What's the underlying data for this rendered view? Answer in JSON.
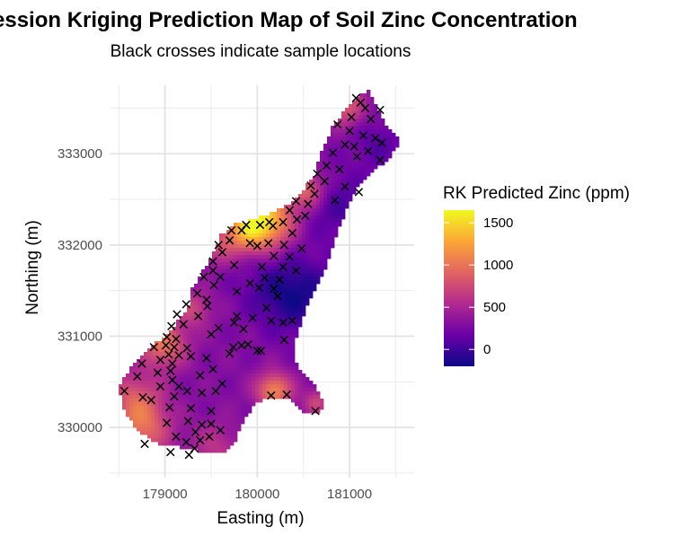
{
  "chart_data": {
    "type": "heatmap",
    "title": "Regression Kriging Prediction Map of Soil Zinc Concentration",
    "subtitle": "Black crosses indicate sample locations",
    "xlabel": "Easting (m)",
    "ylabel": "Northing (m)",
    "xlim": [
      178400,
      181700
    ],
    "ylim": [
      329450,
      333750
    ],
    "x_ticks": [
      179000,
      180000,
      181000
    ],
    "y_ticks": [
      330000,
      331000,
      332000,
      333000
    ],
    "grid": true,
    "legend": {
      "title": "RK Predicted Zinc (ppm)",
      "placement": "right",
      "ticks": [
        0,
        500,
        1000,
        1500
      ],
      "range": [
        -200,
        1650
      ],
      "colormap": "plasma",
      "colors": [
        "#0d0887",
        "#6a00a8",
        "#b12a90",
        "#e16462",
        "#fca636",
        "#f0f921"
      ]
    },
    "samples": [
      [
        181070,
        333610
      ],
      [
        181120,
        333560
      ],
      [
        181170,
        333500
      ],
      [
        181330,
        333480
      ],
      [
        181020,
        333400
      ],
      [
        181230,
        333380
      ],
      [
        180870,
        333320
      ],
      [
        181000,
        333250
      ],
      [
        181150,
        333200
      ],
      [
        181280,
        333170
      ],
      [
        181350,
        333120
      ],
      [
        180950,
        333100
      ],
      [
        181050,
        333080
      ],
      [
        181200,
        333030
      ],
      [
        180820,
        333010
      ],
      [
        181080,
        332970
      ],
      [
        180750,
        332870
      ],
      [
        180890,
        332830
      ],
      [
        181330,
        332930
      ],
      [
        180650,
        332780
      ],
      [
        180730,
        332700
      ],
      [
        180950,
        332640
      ],
      [
        181100,
        332580
      ],
      [
        180580,
        332650
      ],
      [
        180620,
        332560
      ],
      [
        180840,
        332490
      ],
      [
        180550,
        332450
      ],
      [
        180420,
        332480
      ],
      [
        180350,
        332380
      ],
      [
        180520,
        332320
      ],
      [
        180430,
        332280
      ],
      [
        180280,
        332250
      ],
      [
        180130,
        332250
      ],
      [
        180030,
        332220
      ],
      [
        180170,
        332210
      ],
      [
        180380,
        332130
      ],
      [
        179880,
        332220
      ],
      [
        179830,
        332160
      ],
      [
        179720,
        332160
      ],
      [
        179920,
        332020
      ],
      [
        180120,
        332020
      ],
      [
        180290,
        332000
      ],
      [
        179700,
        332050
      ],
      [
        179580,
        332000
      ],
      [
        180000,
        331990
      ],
      [
        180480,
        331960
      ],
      [
        179620,
        331920
      ],
      [
        180180,
        331880
      ],
      [
        180350,
        331870
      ],
      [
        179520,
        331820
      ],
      [
        180280,
        331760
      ],
      [
        180050,
        331760
      ],
      [
        179750,
        331780
      ],
      [
        180420,
        331720
      ],
      [
        179520,
        331720
      ],
      [
        179600,
        331650
      ],
      [
        180080,
        331640
      ],
      [
        180240,
        331620
      ],
      [
        179420,
        331650
      ],
      [
        179530,
        331560
      ],
      [
        179920,
        331580
      ],
      [
        180020,
        331530
      ],
      [
        180180,
        331520
      ],
      [
        179350,
        331470
      ],
      [
        179780,
        331490
      ],
      [
        180220,
        331440
      ],
      [
        179450,
        331400
      ],
      [
        179230,
        331350
      ],
      [
        179460,
        331330
      ],
      [
        180100,
        331310
      ],
      [
        179780,
        331220
      ],
      [
        179950,
        331200
      ],
      [
        179130,
        331240
      ],
      [
        179360,
        331220
      ],
      [
        179750,
        331150
      ],
      [
        180150,
        331170
      ],
      [
        179200,
        331130
      ],
      [
        179070,
        331110
      ],
      [
        179580,
        331090
      ],
      [
        180280,
        331150
      ],
      [
        180380,
        331170
      ],
      [
        179850,
        331080
      ],
      [
        179500,
        331020
      ],
      [
        179020,
        330990
      ],
      [
        179120,
        330970
      ],
      [
        179010,
        330900
      ],
      [
        179100,
        330880
      ],
      [
        178880,
        330880
      ],
      [
        179240,
        330870
      ],
      [
        179740,
        330880
      ],
      [
        180000,
        330840
      ],
      [
        179040,
        330800
      ],
      [
        179150,
        330790
      ],
      [
        179280,
        330780
      ],
      [
        179830,
        330900
      ],
      [
        179900,
        330910
      ],
      [
        180040,
        330840
      ],
      [
        180290,
        330960
      ],
      [
        178950,
        330740
      ],
      [
        179080,
        330700
      ],
      [
        178750,
        330700
      ],
      [
        178920,
        330600
      ],
      [
        179060,
        330620
      ],
      [
        179450,
        330760
      ],
      [
        179700,
        330810
      ],
      [
        178700,
        330560
      ],
      [
        179080,
        330520
      ],
      [
        179380,
        330570
      ],
      [
        179520,
        330640
      ],
      [
        179150,
        330450
      ],
      [
        178560,
        330400
      ],
      [
        178950,
        330450
      ],
      [
        179400,
        330380
      ],
      [
        179550,
        330400
      ],
      [
        179620,
        330480
      ],
      [
        178760,
        330330
      ],
      [
        178850,
        330300
      ],
      [
        179100,
        330340
      ],
      [
        179240,
        330400
      ],
      [
        180150,
        330350
      ],
      [
        180320,
        330360
      ],
      [
        179050,
        330220
      ],
      [
        179280,
        330210
      ],
      [
        179500,
        330180
      ],
      [
        180630,
        330180
      ],
      [
        179020,
        330050
      ],
      [
        179250,
        330070
      ],
      [
        179400,
        330030
      ],
      [
        179500,
        330040
      ],
      [
        179120,
        329900
      ],
      [
        179330,
        329950
      ],
      [
        179600,
        329970
      ],
      [
        179230,
        329840
      ],
      [
        179380,
        329860
      ],
      [
        179480,
        329900
      ],
      [
        178780,
        329820
      ],
      [
        179320,
        329770
      ],
      [
        179060,
        329730
      ],
      [
        179260,
        329700
      ]
    ]
  }
}
